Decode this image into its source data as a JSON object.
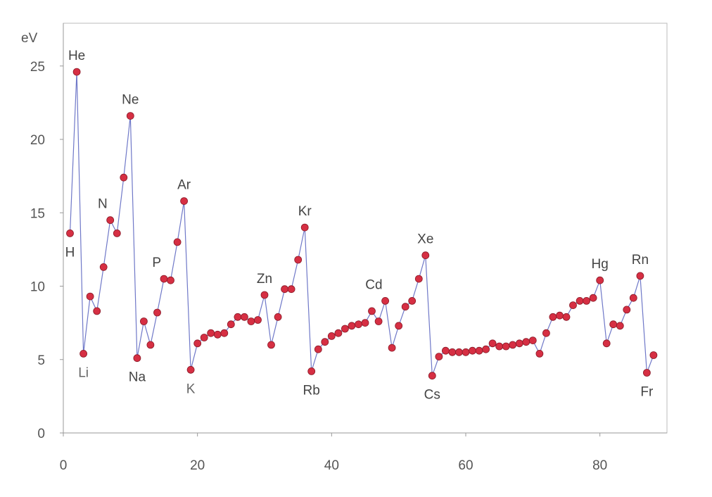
{
  "chart_data": {
    "type": "line",
    "title": "",
    "xlabel": "",
    "ylabel": "eV",
    "xlim": [
      0,
      90
    ],
    "ylim": [
      0,
      27
    ],
    "x_ticks": [
      "0",
      "20",
      "40",
      "60",
      "80"
    ],
    "y_ticks": [
      "0",
      "5",
      "10",
      "15",
      "20",
      "25"
    ],
    "grid": false,
    "legend": "none",
    "series": [
      {
        "name": "",
        "color": "#6f78c8",
        "marker_color": "#d62f43",
        "points": [
          [
            1,
            13.6
          ],
          [
            2,
            24.6
          ],
          [
            3,
            5.4
          ],
          [
            4,
            9.3
          ],
          [
            5,
            8.3
          ],
          [
            6,
            11.3
          ],
          [
            7,
            14.5
          ],
          [
            8,
            13.6
          ],
          [
            9,
            17.4
          ],
          [
            10,
            21.6
          ],
          [
            11,
            5.1
          ],
          [
            12,
            7.6
          ],
          [
            13,
            6.0
          ],
          [
            14,
            8.2
          ],
          [
            15,
            10.5
          ],
          [
            16,
            10.4
          ],
          [
            17,
            13.0
          ],
          [
            18,
            15.8
          ],
          [
            19,
            4.3
          ],
          [
            20,
            6.1
          ],
          [
            21,
            6.5
          ],
          [
            22,
            6.8
          ],
          [
            23,
            6.7
          ],
          [
            24,
            6.8
          ],
          [
            25,
            7.4
          ],
          [
            26,
            7.9
          ],
          [
            27,
            7.9
          ],
          [
            28,
            7.6
          ],
          [
            29,
            7.7
          ],
          [
            30,
            9.4
          ],
          [
            31,
            6.0
          ],
          [
            32,
            7.9
          ],
          [
            33,
            9.8
          ],
          [
            34,
            9.8
          ],
          [
            35,
            11.8
          ],
          [
            36,
            14.0
          ],
          [
            37,
            4.2
          ],
          [
            38,
            5.7
          ],
          [
            39,
            6.2
          ],
          [
            40,
            6.6
          ],
          [
            41,
            6.8
          ],
          [
            42,
            7.1
          ],
          [
            43,
            7.3
          ],
          [
            44,
            7.4
          ],
          [
            45,
            7.5
          ],
          [
            46,
            8.3
          ],
          [
            47,
            7.6
          ],
          [
            48,
            9.0
          ],
          [
            49,
            5.8
          ],
          [
            50,
            7.3
          ],
          [
            51,
            8.6
          ],
          [
            52,
            9.0
          ],
          [
            53,
            10.5
          ],
          [
            54,
            12.1
          ],
          [
            55,
            3.9
          ],
          [
            56,
            5.2
          ],
          [
            57,
            5.6
          ],
          [
            58,
            5.5
          ],
          [
            59,
            5.5
          ],
          [
            60,
            5.5
          ],
          [
            61,
            5.6
          ],
          [
            62,
            5.6
          ],
          [
            63,
            5.7
          ],
          [
            64,
            6.1
          ],
          [
            65,
            5.9
          ],
          [
            66,
            5.9
          ],
          [
            67,
            6.0
          ],
          [
            68,
            6.1
          ],
          [
            69,
            6.2
          ],
          [
            70,
            6.3
          ],
          [
            71,
            5.4
          ],
          [
            72,
            6.8
          ],
          [
            73,
            7.9
          ],
          [
            74,
            8.0
          ],
          [
            75,
            7.9
          ],
          [
            76,
            8.7
          ],
          [
            77,
            9.0
          ],
          [
            78,
            9.0
          ],
          [
            79,
            9.2
          ],
          [
            80,
            10.4
          ],
          [
            81,
            6.1
          ],
          [
            82,
            7.4
          ],
          [
            83,
            7.3
          ],
          [
            84,
            8.4
          ],
          [
            85,
            9.2
          ],
          [
            86,
            10.7
          ],
          [
            87,
            4.1
          ],
          [
            88,
            5.3
          ]
        ]
      }
    ],
    "annotations": [
      {
        "text": "He",
        "x": 2,
        "y": 24.6,
        "pos": "above"
      },
      {
        "text": "Ne",
        "x": 10,
        "y": 21.6,
        "pos": "above"
      },
      {
        "text": "N",
        "x": 7,
        "y": 14.5,
        "pos": "above-left"
      },
      {
        "text": "Ar",
        "x": 18,
        "y": 15.8,
        "pos": "above"
      },
      {
        "text": "P",
        "x": 15,
        "y": 10.5,
        "pos": "above-left"
      },
      {
        "text": "H",
        "x": 1,
        "y": 13.6,
        "pos": "below"
      },
      {
        "text": "Li",
        "x": 3,
        "y": 5.4,
        "pos": "below",
        "style": "muted"
      },
      {
        "text": "Na",
        "x": 11,
        "y": 5.1,
        "pos": "below"
      },
      {
        "text": "K",
        "x": 19,
        "y": 4.3,
        "pos": "below",
        "style": "muted"
      },
      {
        "text": "Zn",
        "x": 30,
        "y": 9.4,
        "pos": "above"
      },
      {
        "text": "Kr",
        "x": 36,
        "y": 14.0,
        "pos": "above"
      },
      {
        "text": "Rb",
        "x": 37,
        "y": 4.2,
        "pos": "below"
      },
      {
        "text": "Cd",
        "x": 48,
        "y": 9.0,
        "pos": "above-left"
      },
      {
        "text": "Xe",
        "x": 54,
        "y": 12.1,
        "pos": "above"
      },
      {
        "text": "Cs",
        "x": 55,
        "y": 3.9,
        "pos": "below"
      },
      {
        "text": "Hg",
        "x": 80,
        "y": 10.4,
        "pos": "above"
      },
      {
        "text": "Rn",
        "x": 86,
        "y": 10.7,
        "pos": "above"
      },
      {
        "text": "Fr",
        "x": 87,
        "y": 4.1,
        "pos": "below"
      }
    ]
  }
}
